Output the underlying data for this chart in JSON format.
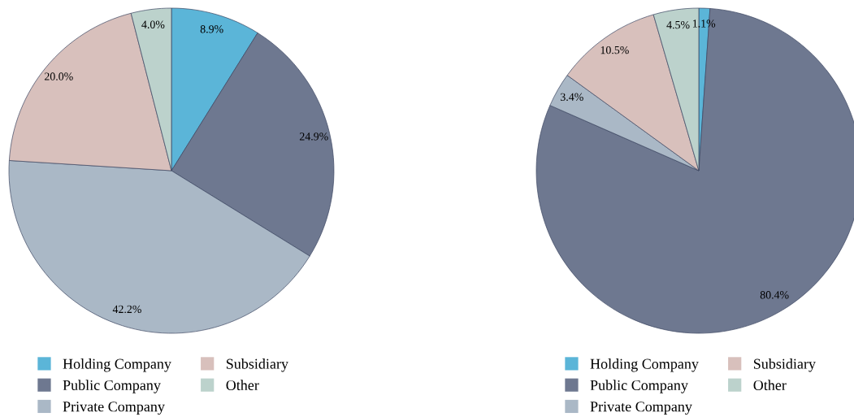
{
  "chart_data": [
    {
      "type": "pie",
      "categories": [
        "Holding Company",
        "Public Company",
        "Private Company",
        "Subsidiary",
        "Other"
      ],
      "values": [
        8.9,
        24.9,
        42.2,
        20.0,
        4.0
      ],
      "value_labels": [
        "8.9%",
        "24.9%",
        "42.2%",
        "20.0%",
        "4.0%"
      ],
      "colors": [
        "#5bb5d8",
        "#6e7890",
        "#aab8c6",
        "#d8c0bc",
        "#bcd2cc"
      ],
      "legend": "bottom"
    },
    {
      "type": "pie",
      "categories": [
        "Holding Company",
        "Public Company",
        "Private Company",
        "Subsidiary",
        "Other"
      ],
      "values": [
        1.1,
        80.4,
        3.4,
        10.5,
        4.5
      ],
      "value_labels": [
        "1.1%",
        "80.4%",
        "3.4%",
        "10.5%",
        "4.5%"
      ],
      "colors": [
        "#5bb5d8",
        "#6e7890",
        "#aab8c6",
        "#d8c0bc",
        "#bcd2cc"
      ],
      "legend": "bottom"
    }
  ]
}
